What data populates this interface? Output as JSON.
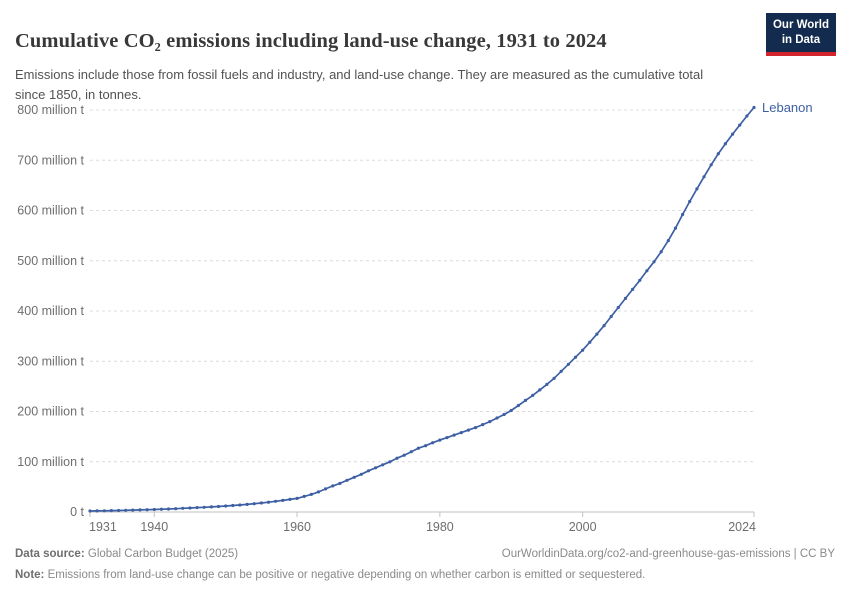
{
  "header": {
    "title": "Cumulative CO₂ emissions including land-use change, 1931 to 2024",
    "subtitle": "Emissions include those from fossil fuels and industry, and land-use change. They are measured as the cumulative total since 1850, in tonnes.",
    "logo": {
      "line1": "Our World",
      "line2": "in Data",
      "bg_color": "#122B4E",
      "accent_color": "#D2242C"
    }
  },
  "chart_data": {
    "type": "line",
    "title": "Cumulative CO₂ emissions including land-use change, 1931 to 2024",
    "unit": "million t",
    "entity_label": "Lebanon",
    "line_color": "#3D5FA4",
    "grid": "horizontal dashed",
    "xlim": [
      1931,
      2024
    ],
    "ylim": [
      0,
      800
    ],
    "x_ticks": [
      1931,
      1940,
      1960,
      1980,
      2000,
      2024
    ],
    "x_tick_labels": [
      "1931",
      "1940",
      "1960",
      "1980",
      "2000",
      "2024"
    ],
    "y_ticks": [
      0,
      100,
      200,
      300,
      400,
      500,
      600,
      700,
      800
    ],
    "y_tick_labels": [
      "0 t",
      "100 million t",
      "200 million t",
      "300 million t",
      "400 million t",
      "500 million t",
      "600 million t",
      "700 million t",
      "800 million t"
    ],
    "x_years": {
      "start": 1931,
      "end": 2024,
      "step": 1
    },
    "series": [
      {
        "name": "Lebanon",
        "color": "#3D5FA4",
        "values": [
          2,
          2.2,
          2.4,
          2.7,
          3,
          3.3,
          3.7,
          4.1,
          4.5,
          5,
          5.5,
          6,
          6.6,
          7.3,
          8,
          8.7,
          9.4,
          10.2,
          11,
          12,
          13,
          14,
          15.2,
          16.5,
          18,
          19.5,
          21.2,
          23,
          25,
          27,
          31,
          35,
          40,
          46,
          52,
          57,
          63,
          69,
          75,
          82,
          88,
          94,
          100,
          107,
          113,
          120,
          127,
          132,
          138,
          143,
          148,
          153,
          158,
          163,
          168,
          174,
          180,
          187,
          194,
          202,
          212,
          222,
          232,
          243,
          254,
          266,
          280,
          294,
          308,
          322,
          338,
          354,
          371,
          389,
          407,
          425,
          443,
          461,
          480,
          498,
          518,
          540,
          565,
          592,
          618,
          643,
          667,
          691,
          713,
          733,
          752,
          770,
          788,
          805
        ]
      }
    ]
  },
  "footer": {
    "data_source_label": "Data source:",
    "data_source": "Global Carbon Budget (2025)",
    "link": "OurWorldinData.org/co2-and-greenhouse-gas-emissions | CC BY",
    "note_label": "Note:",
    "note": "Emissions from land-use change can be positive or negative depending on whether carbon is emitted or sequestered."
  }
}
